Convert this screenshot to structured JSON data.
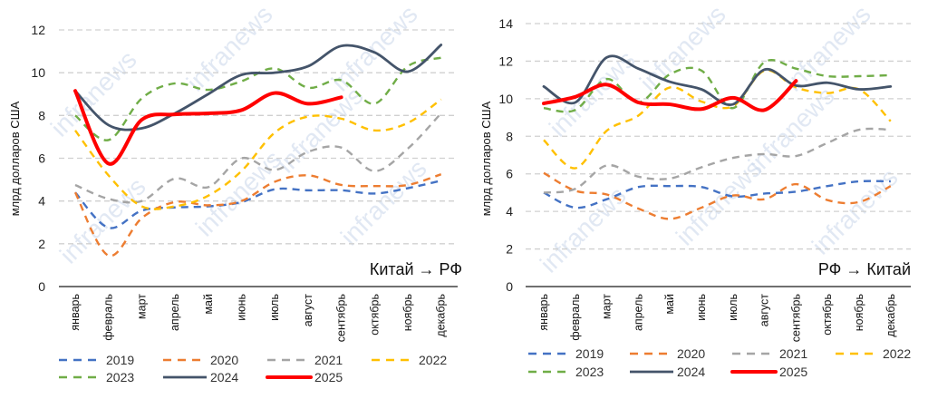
{
  "chart_data": [
    {
      "type": "line",
      "title": "Китай → РФ",
      "xlabel": "",
      "ylabel": "млрд долларов США",
      "ylim": [
        0,
        12
      ],
      "yticks": [
        "0",
        "2",
        "4",
        "6",
        "8",
        "10",
        "12"
      ],
      "grid": true,
      "legend": "bottom",
      "categories": [
        "январь",
        "февраль",
        "март",
        "апрель",
        "май",
        "июнь",
        "июль",
        "август",
        "сентябрь",
        "октябрь",
        "ноябрь",
        "декабрь"
      ],
      "series": [
        {
          "name": "2019",
          "color": "#4472c4",
          "style": "dashed",
          "values": [
            4.4,
            2.75,
            3.55,
            3.7,
            3.75,
            3.95,
            4.55,
            4.5,
            4.5,
            4.35,
            4.6,
            4.95
          ]
        },
        {
          "name": "2020",
          "color": "#ed7d31",
          "style": "dashed",
          "values": [
            4.4,
            1.45,
            3.2,
            3.95,
            3.8,
            4.0,
            4.9,
            5.2,
            4.75,
            4.7,
            4.75,
            5.25
          ]
        },
        {
          "name": "2021",
          "color": "#a5a5a5",
          "style": "dashed",
          "values": [
            4.75,
            4.1,
            4.0,
            5.05,
            4.65,
            6.0,
            5.45,
            6.3,
            6.5,
            5.4,
            6.45,
            8.1
          ]
        },
        {
          "name": "2022",
          "color": "#ffc000",
          "style": "dashed",
          "values": [
            7.3,
            5.2,
            3.75,
            3.75,
            4.25,
            5.4,
            7.2,
            7.95,
            7.85,
            7.3,
            7.65,
            8.75
          ]
        },
        {
          "name": "2023",
          "color": "#70ad47",
          "style": "dashed",
          "values": [
            8.0,
            6.85,
            8.8,
            9.5,
            9.2,
            9.6,
            10.2,
            9.3,
            9.65,
            8.55,
            10.3,
            10.7
          ]
        },
        {
          "name": "2024",
          "color": "#44546a",
          "style": "solid",
          "values": [
            9.15,
            7.55,
            7.4,
            8.1,
            9.0,
            9.9,
            10.0,
            10.3,
            11.25,
            10.95,
            10.05,
            11.3
          ]
        },
        {
          "name": "2025",
          "color": "#ff0000",
          "style": "solid-thick",
          "values": [
            9.15,
            5.75,
            7.8,
            8.05,
            8.1,
            8.25,
            9.05,
            8.55,
            8.85
          ]
        }
      ],
      "annotation": "Китай → РФ"
    },
    {
      "type": "line",
      "title": "РФ → Китай",
      "xlabel": "",
      "ylabel": "млрд долларов США",
      "ylim": [
        0,
        14
      ],
      "yticks": [
        "0",
        "2",
        "4",
        "6",
        "8",
        "10",
        "12",
        "14"
      ],
      "grid": true,
      "legend": "bottom",
      "categories": [
        "январь",
        "февраль",
        "март",
        "апрель",
        "май",
        "июнь",
        "июль",
        "август",
        "сентябрь",
        "октябрь",
        "ноябрь",
        "декабрь"
      ],
      "series": [
        {
          "name": "2019",
          "color": "#4472c4",
          "style": "dashed",
          "values": [
            5.0,
            4.2,
            4.65,
            5.3,
            5.35,
            5.3,
            4.8,
            4.95,
            5.05,
            5.35,
            5.6,
            5.6
          ]
        },
        {
          "name": "2020",
          "color": "#ed7d31",
          "style": "dashed",
          "values": [
            6.05,
            5.1,
            4.9,
            4.15,
            3.6,
            4.2,
            4.85,
            4.65,
            5.45,
            4.6,
            4.5,
            5.35
          ]
        },
        {
          "name": "2021",
          "color": "#a5a5a5",
          "style": "dashed",
          "values": [
            5.0,
            5.2,
            6.45,
            5.85,
            5.75,
            6.35,
            6.85,
            7.05,
            6.95,
            7.65,
            8.35,
            8.35
          ]
        },
        {
          "name": "2022",
          "color": "#ffc000",
          "style": "dashed",
          "values": [
            7.8,
            6.3,
            8.3,
            9.1,
            10.6,
            9.85,
            9.6,
            11.5,
            10.6,
            10.3,
            10.5,
            8.8
          ]
        },
        {
          "name": "2023",
          "color": "#70ad47",
          "style": "dashed",
          "values": [
            9.5,
            9.4,
            11.05,
            9.8,
            11.3,
            11.5,
            9.5,
            11.95,
            11.6,
            11.2,
            11.2,
            11.25
          ]
        },
        {
          "name": "2024",
          "color": "#44546a",
          "style": "solid",
          "values": [
            10.65,
            9.8,
            12.2,
            11.6,
            10.9,
            10.5,
            9.7,
            11.55,
            10.7,
            10.85,
            10.5,
            10.65
          ]
        },
        {
          "name": "2025",
          "color": "#ff0000",
          "style": "solid-thick",
          "values": [
            9.75,
            10.1,
            10.75,
            9.8,
            9.7,
            9.45,
            10.05,
            9.4,
            10.95
          ]
        }
      ],
      "annotation": "РФ → Китай"
    }
  ],
  "watermark": "infranews"
}
